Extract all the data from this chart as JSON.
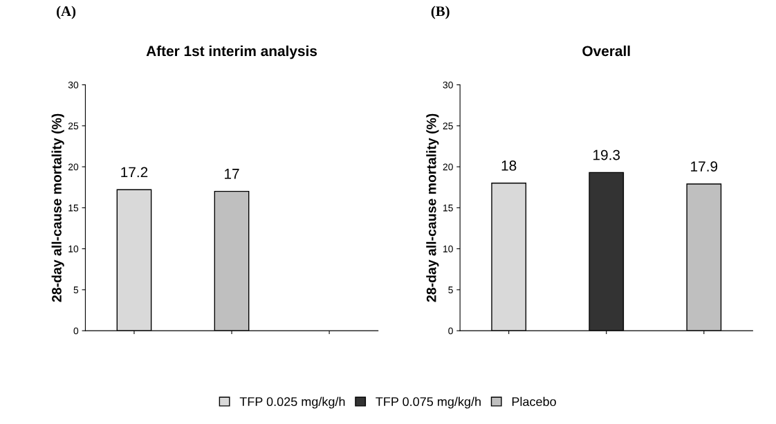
{
  "chart_data": [
    {
      "type": "bar",
      "title": "After 1st interim analysis",
      "ylabel": "28-day all-cause mortality (%)",
      "annotations": [
        "(A)"
      ],
      "categories": [
        null,
        null,
        null
      ],
      "series": [
        {
          "color": "#d9d9d9",
          "values": [
            17.2,
            null,
            null
          ]
        },
        {
          "color": "#bfbfbf",
          "values": [
            null,
            17,
            null
          ]
        }
      ],
      "ylim": [
        0,
        30
      ],
      "yticks": [
        0,
        5,
        10,
        15,
        20,
        25,
        30
      ],
      "data_labels": true
    },
    {
      "type": "bar",
      "title": "Overall",
      "ylabel": "28-day all-cause mortality (%)",
      "annotations": [
        "(B)"
      ],
      "categories": [
        null,
        null,
        null
      ],
      "series": [
        {
          "name": "TFP 0.025 mg/kg/h",
          "color": "#d9d9d9",
          "values": [
            18,
            null,
            null
          ]
        },
        {
          "name": "TFP 0.075 mg/kg/h",
          "color": "#333333",
          "values": [
            null,
            19.3,
            null
          ]
        },
        {
          "name": "Placebo",
          "color": "#bfbfbf",
          "values": [
            null,
            null,
            17.9
          ]
        }
      ],
      "ylim": [
        0,
        30
      ],
      "yticks": [
        0,
        5,
        10,
        15,
        20,
        25,
        30
      ],
      "data_labels": true,
      "legend": "bottom"
    }
  ]
}
